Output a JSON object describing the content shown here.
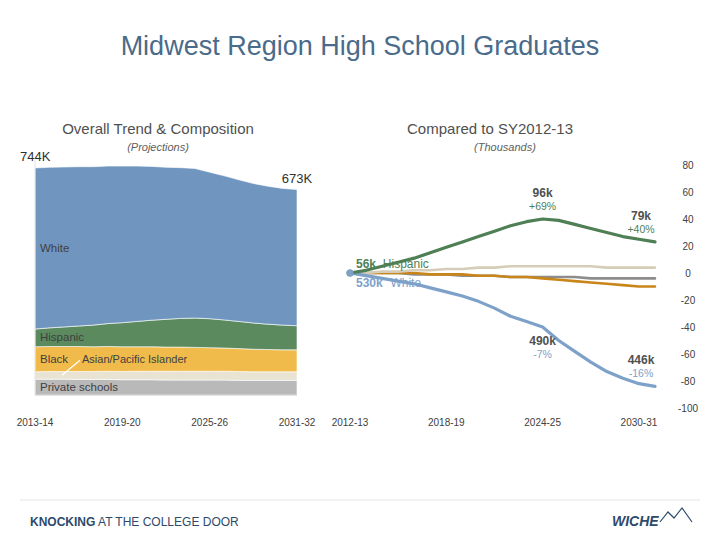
{
  "title": "Midwest Region High School Graduates",
  "footer": {
    "left": "KNOCKING AT THE COLLEGE DOOR",
    "right": "WICHE"
  },
  "chart_data": [
    {
      "type": "area",
      "stacked": true,
      "title": "Overall Trend & Composition",
      "subtitle": "(Projections)",
      "categories": [
        "2013-14",
        null,
        null,
        null,
        null,
        null,
        "2019-20",
        null,
        null,
        null,
        null,
        null,
        "2025-26",
        null,
        null,
        null,
        null,
        null,
        "2031-32"
      ],
      "ylim": [
        0,
        770
      ],
      "tick_labels": "x",
      "series": [
        {
          "name": "Private schools",
          "color": "#b9b9b9",
          "values": [
            52,
            52,
            52,
            51,
            51,
            51,
            50,
            50,
            50,
            49,
            49,
            49,
            49,
            49,
            48,
            48,
            48,
            48,
            48
          ]
        },
        {
          "name": "Asian/Pacific Islander",
          "color": "#e9e3d3",
          "values": [
            24,
            25,
            25,
            26,
            26,
            27,
            27,
            28,
            28,
            29,
            29,
            29,
            29,
            29,
            29,
            28,
            28,
            28,
            28
          ]
        },
        {
          "name": "Black",
          "color": "#f0bb4b",
          "values": [
            82,
            82,
            82,
            82,
            81,
            81,
            81,
            80,
            80,
            79,
            79,
            78,
            77,
            76,
            75,
            74,
            73,
            72,
            72
          ]
        },
        {
          "name": "Hispanic",
          "color": "#5b8a5e",
          "values": [
            58,
            61,
            64,
            67,
            71,
            75,
            79,
            83,
            87,
            91,
            94,
            96,
            95,
            92,
            89,
            86,
            83,
            81,
            79
          ]
        },
        {
          "name": "White",
          "color": "#7096bf",
          "values": [
            528,
            526,
            524,
            522,
            519,
            516,
            513,
            509,
            504,
            498,
            494,
            490,
            480,
            472,
            464,
            457,
            452,
            448,
            446
          ]
        }
      ],
      "annotations": [
        {
          "text": "744K",
          "index": 0
        },
        {
          "text": "673K",
          "index": 18
        }
      ]
    },
    {
      "type": "line",
      "title": "Compared to SY2012-13",
      "subtitle": "(Thousands)",
      "categories": [
        "2012-13",
        null,
        null,
        null,
        null,
        null,
        "2018-19",
        null,
        null,
        null,
        null,
        null,
        "2024-25",
        null,
        null,
        null,
        null,
        null,
        "2030-31",
        null
      ],
      "ylim": [
        -100,
        80
      ],
      "yticks": [
        80,
        60,
        40,
        20,
        0,
        -20,
        -40,
        -60,
        -80,
        -100
      ],
      "series": [
        {
          "name": "Hispanic",
          "color": "#4f7f55",
          "values": [
            0,
            2,
            5,
            8,
            11,
            15,
            19,
            23,
            27,
            31,
            35,
            38,
            40,
            39,
            36,
            33,
            30,
            27,
            25,
            23
          ]
        },
        {
          "name": "White",
          "color": "#7ea1c9",
          "values": [
            0,
            -2,
            -4,
            -6,
            -8,
            -11,
            -14,
            -17,
            -21,
            -26,
            -32,
            -36,
            -40,
            -50,
            -58,
            -66,
            -73,
            -78,
            -82,
            -84
          ]
        },
        {
          "name": "Asian/Pacific Islander",
          "color": "#d6cdb8",
          "values": [
            0,
            0,
            1,
            1,
            2,
            2,
            3,
            3,
            4,
            4,
            5,
            5,
            5,
            5,
            5,
            5,
            4,
            4,
            4,
            4
          ]
        },
        {
          "name": "Black",
          "color": "#c9851a",
          "values": [
            0,
            0,
            0,
            0,
            0,
            -1,
            -1,
            -1,
            -2,
            -2,
            -3,
            -3,
            -4,
            -5,
            -6,
            -7,
            -8,
            -9,
            -10,
            -10
          ]
        },
        {
          "name": "Private schools",
          "color": "#8c8c8c",
          "values": [
            0,
            0,
            0,
            0,
            -1,
            -1,
            -1,
            -2,
            -2,
            -2,
            -3,
            -3,
            -3,
            -3,
            -3,
            -4,
            -4,
            -4,
            -4,
            -4
          ]
        }
      ],
      "annotations": [
        {
          "text": "56k",
          "subtext": "Hispanic",
          "series": 0,
          "index": 0
        },
        {
          "text": "96k",
          "subtext": "+69%",
          "series": 0,
          "index": 12
        },
        {
          "text": "79k",
          "subtext": "+40%",
          "series": 0,
          "index": 19
        },
        {
          "text": "530k",
          "subtext": "White",
          "series": 1,
          "index": 0
        },
        {
          "text": "490k",
          "subtext": "-7%",
          "series": 1,
          "index": 12
        },
        {
          "text": "446k",
          "subtext": "-16%",
          "series": 1,
          "index": 19
        }
      ]
    }
  ]
}
